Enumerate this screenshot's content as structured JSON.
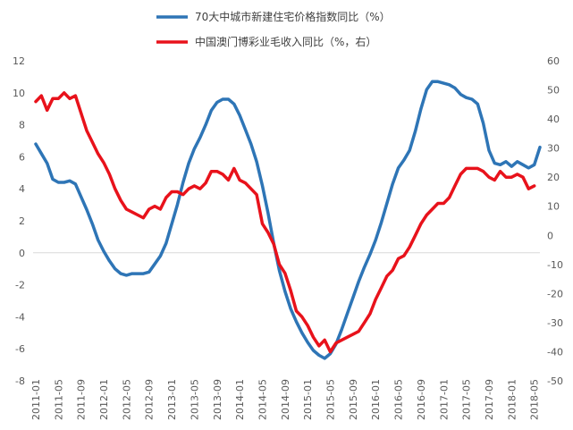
{
  "chart_data": {
    "type": "line",
    "title": "",
    "xlabel": "",
    "ylabel": "",
    "y2label": "",
    "ylim": [
      -8,
      12
    ],
    "yticks": [
      -8,
      -6,
      -4,
      -2,
      0,
      2,
      4,
      6,
      8,
      10,
      12
    ],
    "y2lim": [
      -50,
      60
    ],
    "y2ticks": [
      -50,
      -40,
      -30,
      -20,
      -10,
      0,
      10,
      20,
      30,
      40,
      50,
      60
    ],
    "x_start": "2011-01",
    "x_end": "2018-06",
    "x_tick_labels": [
      "2011-01",
      "2011-05",
      "2011-09",
      "2012-01",
      "2012-05",
      "2012-09",
      "2013-01",
      "2013-05",
      "2013-09",
      "2014-01",
      "2014-05",
      "2014-09",
      "2015-01",
      "2015-05",
      "2015-09",
      "2016-01",
      "2016-05",
      "2016-09",
      "2017-01",
      "2017-05",
      "2017-09",
      "2018-01",
      "2018-05"
    ],
    "legend_position": "top",
    "grid": false,
    "series": [
      {
        "name": "70大中城市新建住宅价格指数同比（%）",
        "axis": "left",
        "color": "#2E75B6",
        "points": [
          [
            "2011-01",
            6.8
          ],
          [
            "2011-02",
            6.2
          ],
          [
            "2011-03",
            5.6
          ],
          [
            "2011-04",
            4.6
          ],
          [
            "2011-05",
            4.4
          ],
          [
            "2011-06",
            4.4
          ],
          [
            "2011-07",
            4.5
          ],
          [
            "2011-08",
            4.3
          ],
          [
            "2011-09",
            3.5
          ],
          [
            "2011-10",
            2.7
          ],
          [
            "2011-11",
            1.8
          ],
          [
            "2011-12",
            0.8
          ],
          [
            "2012-01",
            0.1
          ],
          [
            "2012-02",
            -0.5
          ],
          [
            "2012-03",
            -1.0
          ],
          [
            "2012-04",
            -1.3
          ],
          [
            "2012-05",
            -1.4
          ],
          [
            "2012-06",
            -1.3
          ],
          [
            "2012-07",
            -1.3
          ],
          [
            "2012-08",
            -1.3
          ],
          [
            "2012-09",
            -1.2
          ],
          [
            "2012-10",
            -0.7
          ],
          [
            "2012-11",
            -0.2
          ],
          [
            "2012-12",
            0.6
          ],
          [
            "2013-01",
            1.8
          ],
          [
            "2013-02",
            3.0
          ],
          [
            "2013-03",
            4.4
          ],
          [
            "2013-04",
            5.6
          ],
          [
            "2013-05",
            6.5
          ],
          [
            "2013-06",
            7.2
          ],
          [
            "2013-07",
            8.0
          ],
          [
            "2013-08",
            8.9
          ],
          [
            "2013-09",
            9.4
          ],
          [
            "2013-10",
            9.6
          ],
          [
            "2013-11",
            9.6
          ],
          [
            "2013-12",
            9.3
          ],
          [
            "2014-01",
            8.6
          ],
          [
            "2014-02",
            7.7
          ],
          [
            "2014-03",
            6.8
          ],
          [
            "2014-04",
            5.7
          ],
          [
            "2014-05",
            4.2
          ],
          [
            "2014-06",
            2.5
          ],
          [
            "2014-07",
            0.6
          ],
          [
            "2014-08",
            -1.1
          ],
          [
            "2014-09",
            -2.4
          ],
          [
            "2014-10",
            -3.5
          ],
          [
            "2014-11",
            -4.3
          ],
          [
            "2014-12",
            -5.0
          ],
          [
            "2015-01",
            -5.6
          ],
          [
            "2015-02",
            -6.1
          ],
          [
            "2015-03",
            -6.4
          ],
          [
            "2015-04",
            -6.6
          ],
          [
            "2015-05",
            -6.3
          ],
          [
            "2015-06",
            -5.7
          ],
          [
            "2015-07",
            -4.8
          ],
          [
            "2015-08",
            -3.8
          ],
          [
            "2015-09",
            -2.8
          ],
          [
            "2015-10",
            -1.8
          ],
          [
            "2015-11",
            -0.9
          ],
          [
            "2015-12",
            -0.1
          ],
          [
            "2016-01",
            0.8
          ],
          [
            "2016-02",
            1.9
          ],
          [
            "2016-03",
            3.1
          ],
          [
            "2016-04",
            4.3
          ],
          [
            "2016-05",
            5.3
          ],
          [
            "2016-06",
            5.8
          ],
          [
            "2016-07",
            6.4
          ],
          [
            "2016-08",
            7.6
          ],
          [
            "2016-09",
            9.0
          ],
          [
            "2016-10",
            10.2
          ],
          [
            "2016-11",
            10.7
          ],
          [
            "2016-12",
            10.7
          ],
          [
            "2017-01",
            10.6
          ],
          [
            "2017-02",
            10.5
          ],
          [
            "2017-03",
            10.3
          ],
          [
            "2017-04",
            9.9
          ],
          [
            "2017-05",
            9.7
          ],
          [
            "2017-06",
            9.6
          ],
          [
            "2017-07",
            9.3
          ],
          [
            "2017-08",
            8.1
          ],
          [
            "2017-09",
            6.4
          ],
          [
            "2017-10",
            5.6
          ],
          [
            "2017-11",
            5.5
          ],
          [
            "2017-12",
            5.7
          ],
          [
            "2018-01",
            5.4
          ],
          [
            "2018-02",
            5.7
          ],
          [
            "2018-03",
            5.5
          ],
          [
            "2018-04",
            5.3
          ],
          [
            "2018-05",
            5.5
          ],
          [
            "2018-06",
            6.6
          ]
        ]
      },
      {
        "name": "中国澳门博彩业毛收入同比（%，右）",
        "axis": "right",
        "color": "#E8121B",
        "points": [
          [
            "2011-01",
            46
          ],
          [
            "2011-02",
            48
          ],
          [
            "2011-03",
            43
          ],
          [
            "2011-04",
            47
          ],
          [
            "2011-05",
            47
          ],
          [
            "2011-06",
            49
          ],
          [
            "2011-07",
            47
          ],
          [
            "2011-08",
            48
          ],
          [
            "2011-09",
            42
          ],
          [
            "2011-10",
            36
          ],
          [
            "2011-11",
            32
          ],
          [
            "2011-12",
            28
          ],
          [
            "2012-01",
            25
          ],
          [
            "2012-02",
            21
          ],
          [
            "2012-03",
            16
          ],
          [
            "2012-04",
            12
          ],
          [
            "2012-05",
            9
          ],
          [
            "2012-06",
            8
          ],
          [
            "2012-07",
            7
          ],
          [
            "2012-08",
            6
          ],
          [
            "2012-09",
            9
          ],
          [
            "2012-10",
            10
          ],
          [
            "2012-11",
            9
          ],
          [
            "2012-12",
            13
          ],
          [
            "2013-01",
            15
          ],
          [
            "2013-02",
            15
          ],
          [
            "2013-03",
            14
          ],
          [
            "2013-04",
            16
          ],
          [
            "2013-05",
            17
          ],
          [
            "2013-06",
            16
          ],
          [
            "2013-07",
            18
          ],
          [
            "2013-08",
            22
          ],
          [
            "2013-09",
            22
          ],
          [
            "2013-10",
            21
          ],
          [
            "2013-11",
            19
          ],
          [
            "2013-12",
            23
          ],
          [
            "2014-01",
            19
          ],
          [
            "2014-02",
            18
          ],
          [
            "2014-03",
            16
          ],
          [
            "2014-04",
            14
          ],
          [
            "2014-05",
            4
          ],
          [
            "2014-06",
            1
          ],
          [
            "2014-07",
            -3
          ],
          [
            "2014-08",
            -10
          ],
          [
            "2014-09",
            -13
          ],
          [
            "2014-10",
            -19
          ],
          [
            "2014-11",
            -26
          ],
          [
            "2014-12",
            -28
          ],
          [
            "2015-01",
            -31
          ],
          [
            "2015-02",
            -35
          ],
          [
            "2015-03",
            -38
          ],
          [
            "2015-04",
            -36
          ],
          [
            "2015-05",
            -40
          ],
          [
            "2015-06",
            -37
          ],
          [
            "2015-07",
            -36
          ],
          [
            "2015-08",
            -35
          ],
          [
            "2015-09",
            -34
          ],
          [
            "2015-10",
            -33
          ],
          [
            "2015-11",
            -30
          ],
          [
            "2015-12",
            -27
          ],
          [
            "2016-01",
            -22
          ],
          [
            "2016-02",
            -18
          ],
          [
            "2016-03",
            -14
          ],
          [
            "2016-04",
            -12
          ],
          [
            "2016-05",
            -8
          ],
          [
            "2016-06",
            -7
          ],
          [
            "2016-07",
            -4
          ],
          [
            "2016-08",
            0
          ],
          [
            "2016-09",
            4
          ],
          [
            "2016-10",
            7
          ],
          [
            "2016-11",
            9
          ],
          [
            "2016-12",
            11
          ],
          [
            "2017-01",
            11
          ],
          [
            "2017-02",
            13
          ],
          [
            "2017-03",
            17
          ],
          [
            "2017-04",
            21
          ],
          [
            "2017-05",
            23
          ],
          [
            "2017-06",
            23
          ],
          [
            "2017-07",
            23
          ],
          [
            "2017-08",
            22
          ],
          [
            "2017-09",
            20
          ],
          [
            "2017-10",
            19
          ],
          [
            "2017-11",
            22
          ],
          [
            "2017-12",
            20
          ],
          [
            "2018-01",
            20
          ],
          [
            "2018-02",
            21
          ],
          [
            "2018-03",
            20
          ],
          [
            "2018-04",
            16
          ],
          [
            "2018-05",
            17
          ]
        ]
      }
    ]
  }
}
